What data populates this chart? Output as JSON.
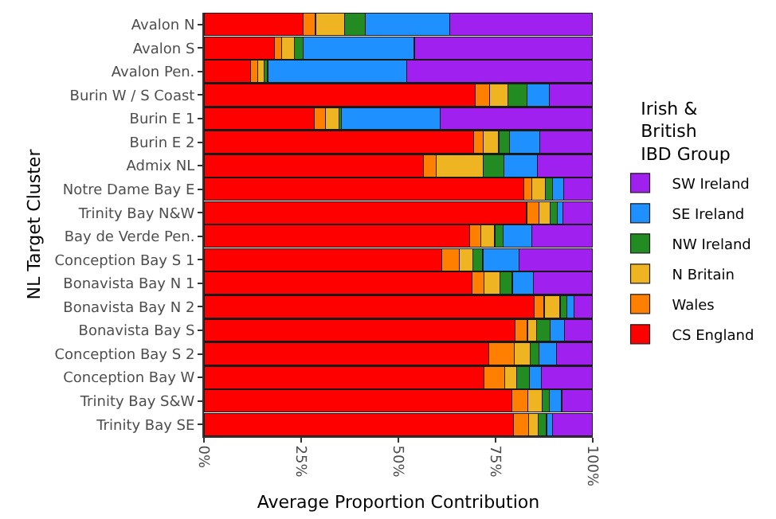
{
  "chart_data": {
    "type": "bar",
    "orientation": "horizontal",
    "stacked": true,
    "xlabel": "Average Proportion Contribution",
    "ylabel": "NL Target Cluster",
    "legend_title": "Irish &\nBritish\nIBD Group",
    "legend": "right",
    "grid": false,
    "categories": [
      "Avalon N",
      "Avalon S",
      "Avalon Pen.",
      "Burin W / S Coast",
      "Burin E 1",
      "Burin E 2",
      "Admix NL",
      "Notre Dame Bay E",
      "Trinity Bay N&W",
      "Bay de Verde Pen.",
      "Conception Bay S 1",
      "Bonavista Bay N 1",
      "Bonavista Bay N 2",
      "Bonavista Bay S",
      "Conception Bay S 2",
      "Conception Bay W",
      "Trinity Bay S&W",
      "Trinity Bay SE"
    ],
    "xlim": [
      0,
      100
    ],
    "xticks": [
      {
        "value": 0,
        "label": "0%"
      },
      {
        "value": 25,
        "label": "25%"
      },
      {
        "value": 50,
        "label": "50%"
      },
      {
        "value": 75,
        "label": "75%"
      },
      {
        "value": 100,
        "label": "100%"
      }
    ],
    "series": [
      {
        "name": "CS England",
        "color": "#ff0000",
        "values": [
          25.5,
          18.2,
          12.0,
          69.8,
          28.4,
          69.4,
          56.5,
          82.2,
          83.0,
          68.4,
          61.2,
          69.0,
          84.9,
          80.1,
          73.3,
          72.1,
          79.2,
          79.6
        ]
      },
      {
        "name": "Wales",
        "color": "#ff7f00",
        "values": [
          3.2,
          1.8,
          1.9,
          3.7,
          2.8,
          2.5,
          3.2,
          2.2,
          3.1,
          2.8,
          4.4,
          3.0,
          2.6,
          3.1,
          6.5,
          5.3,
          4.1,
          3.9
        ]
      },
      {
        "name": "N Britain",
        "color": "#eeb422",
        "values": [
          7.4,
          3.2,
          1.5,
          4.6,
          3.6,
          3.9,
          12.1,
          3.4,
          3.0,
          3.6,
          3.5,
          4.1,
          4.1,
          2.3,
          4.1,
          3.1,
          3.7,
          2.5
        ]
      },
      {
        "name": "NW Ireland",
        "color": "#228b22",
        "values": [
          5.4,
          2.3,
          1.0,
          5.0,
          0.6,
          2.8,
          5.3,
          1.9,
          1.8,
          2.2,
          2.6,
          3.2,
          1.7,
          3.5,
          2.2,
          3.2,
          1.9,
          2.1
        ]
      },
      {
        "name": "SE Ireland",
        "color": "#1e90ff",
        "values": [
          21.7,
          28.6,
          35.7,
          5.8,
          25.3,
          7.7,
          8.6,
          2.8,
          1.4,
          7.4,
          9.3,
          5.4,
          1.9,
          3.7,
          4.5,
          3.0,
          3.1,
          1.5
        ]
      },
      {
        "name": "SW Ireland",
        "color": "#a020f0",
        "values": [
          36.8,
          45.9,
          47.9,
          11.1,
          39.3,
          13.7,
          14.3,
          7.5,
          7.7,
          15.6,
          19.0,
          15.3,
          4.8,
          7.3,
          9.4,
          13.3,
          8.0,
          10.4
        ]
      }
    ]
  }
}
